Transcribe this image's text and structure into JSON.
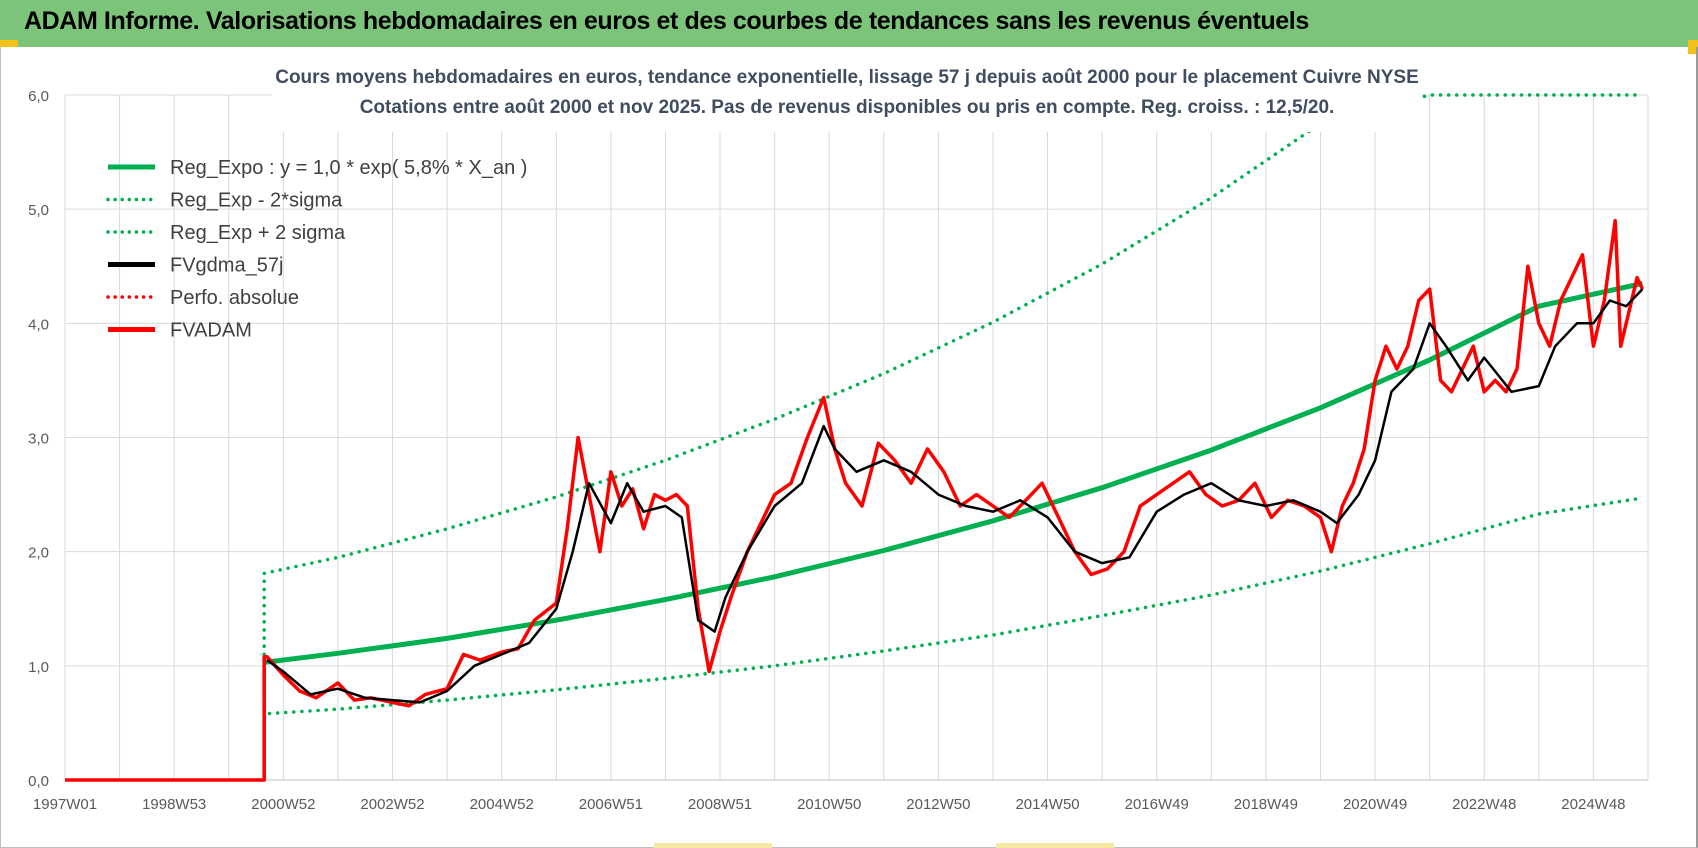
{
  "header": {
    "title": "ADAM Informe. Valorisations hebdomadaires en euros et des courbes de tendances sans les revenus éventuels"
  },
  "colors": {
    "header_bg": "#7cc47a",
    "reg_green": "#00b050",
    "fvgdma_black": "#000000",
    "fvadam_red": "#ff0000",
    "grid": "#d9d9d9"
  },
  "chart_data": {
    "type": "line",
    "title_line1": "Cours moyens hebdomadaires en euros, tendance exponentielle, lissage 57 j depuis août 2000 pour le placement Cuivre NYSE",
    "title_line2": "Cotations entre août 2000  et  nov 2025.  Pas de revenus disponibles ou pris en compte. Reg. croiss. : 12,5/20.",
    "xlabel": "",
    "ylabel": "",
    "ylim": [
      0,
      6
    ],
    "xlim": [
      1997.0,
      2026.0
    ],
    "yticks": [
      "0,0",
      "1,0",
      "2,0",
      "3,0",
      "4,0",
      "5,0",
      "6,0"
    ],
    "xticks": [
      {
        "label": "1997W01",
        "x": 1997.0
      },
      {
        "label": "1998W53",
        "x": 1999.0
      },
      {
        "label": "2000W52",
        "x": 2001.0
      },
      {
        "label": "2002W52",
        "x": 2003.0
      },
      {
        "label": "2004W52",
        "x": 2005.0
      },
      {
        "label": "2006W51",
        "x": 2007.0
      },
      {
        "label": "2008W51",
        "x": 2009.0
      },
      {
        "label": "2010W50",
        "x": 2011.0
      },
      {
        "label": "2012W50",
        "x": 2013.0
      },
      {
        "label": "2014W50",
        "x": 2015.0
      },
      {
        "label": "2016W49",
        "x": 2017.0
      },
      {
        "label": "2018W49",
        "x": 2019.0
      },
      {
        "label": "2020W49",
        "x": 2021.0
      },
      {
        "label": "2022W48",
        "x": 2023.0
      },
      {
        "label": "2024W48",
        "x": 2025.0
      }
    ],
    "grid": true,
    "legend_position": "top-left",
    "legend": [
      {
        "label": "Reg_Expo : y = 1,0 * exp( 5,8% *  X_an )",
        "color": "#00b050",
        "style": "solid",
        "width": 5
      },
      {
        "label": "Reg_Exp - 2*sigma",
        "color": "#00b050",
        "style": "dotted",
        "width": 3
      },
      {
        "label": "Reg_Exp + 2 sigma",
        "color": "#00b050",
        "style": "dotted",
        "width": 3
      },
      {
        "label": "FVgdma_57j",
        "color": "#000000",
        "style": "solid",
        "width": 4
      },
      {
        "label": "Perfo. absolue",
        "color": "#ff0000",
        "style": "dotted",
        "width": 3
      },
      {
        "label": "FVADAM",
        "color": "#ff0000",
        "style": "solid",
        "width": 5
      }
    ],
    "series": [
      {
        "name": "Reg_Expo : y = 1,0 * exp( 5,8% *  X_an )",
        "x": [
          2000.65,
          2002.0,
          2004.0,
          2006.0,
          2008.0,
          2010.0,
          2012.0,
          2014.0,
          2016.0,
          2018.0,
          2020.0,
          2022.0,
          2024.0,
          2025.9
        ],
        "values": [
          1.03,
          1.11,
          1.24,
          1.4,
          1.58,
          1.78,
          2.01,
          2.27,
          2.56,
          2.89,
          3.26,
          3.68,
          4.15,
          4.35
        ]
      },
      {
        "name": "Reg_Exp - 2*sigma",
        "x": [
          2000.65,
          2002.0,
          2004.0,
          2006.0,
          2008.0,
          2010.0,
          2012.0,
          2014.0,
          2016.0,
          2018.0,
          2020.0,
          2022.0,
          2024.0,
          2025.9
        ],
        "values": [
          0.58,
          0.62,
          0.7,
          0.79,
          0.89,
          1.0,
          1.13,
          1.27,
          1.44,
          1.62,
          1.83,
          2.07,
          2.33,
          2.47
        ]
      },
      {
        "name": "Reg_Exp + 2 sigma",
        "x": [
          2000.65,
          2002.0,
          2004.0,
          2006.0,
          2008.0,
          2010.0,
          2012.0,
          2014.0,
          2016.0,
          2018.0,
          2020.0,
          2022.0,
          2024.0,
          2025.9
        ],
        "values": [
          1.81,
          1.95,
          2.2,
          2.48,
          2.8,
          3.16,
          3.56,
          4.01,
          4.52,
          5.1,
          5.75,
          6.0,
          6.0,
          6.0
        ]
      },
      {
        "name": "FVgdma_57j",
        "x": [
          2000.7,
          2001.0,
          2001.5,
          2002.0,
          2002.5,
          2003.0,
          2003.5,
          2004.0,
          2004.5,
          2005.0,
          2005.5,
          2006.0,
          2006.3,
          2006.6,
          2007.0,
          2007.3,
          2007.6,
          2008.0,
          2008.3,
          2008.6,
          2008.9,
          2009.1,
          2009.5,
          2010.0,
          2010.5,
          2010.9,
          2011.1,
          2011.5,
          2012.0,
          2012.5,
          2013.0,
          2013.5,
          2014.0,
          2014.5,
          2015.0,
          2015.5,
          2016.0,
          2016.5,
          2017.0,
          2017.5,
          2018.0,
          2018.5,
          2019.0,
          2019.5,
          2020.0,
          2020.3,
          2020.7,
          2021.0,
          2021.3,
          2021.7,
          2022.0,
          2022.3,
          2022.7,
          2023.0,
          2023.5,
          2024.0,
          2024.3,
          2024.7,
          2025.0,
          2025.3,
          2025.6,
          2025.9
        ],
        "values": [
          1.05,
          0.95,
          0.75,
          0.8,
          0.72,
          0.7,
          0.68,
          0.78,
          1.0,
          1.1,
          1.2,
          1.5,
          2.0,
          2.6,
          2.25,
          2.6,
          2.35,
          2.4,
          2.3,
          1.4,
          1.3,
          1.6,
          2.0,
          2.4,
          2.6,
          3.1,
          2.9,
          2.7,
          2.8,
          2.7,
          2.5,
          2.4,
          2.35,
          2.45,
          2.3,
          2.0,
          1.9,
          1.95,
          2.35,
          2.5,
          2.6,
          2.45,
          2.4,
          2.45,
          2.35,
          2.25,
          2.5,
          2.8,
          3.4,
          3.6,
          4.0,
          3.8,
          3.5,
          3.7,
          3.4,
          3.45,
          3.8,
          4.0,
          4.0,
          4.2,
          4.15,
          4.3
        ]
      },
      {
        "name": "FVADAM",
        "x": [
          1997.0,
          2000.65,
          2000.7,
          2001.0,
          2001.3,
          2001.6,
          2002.0,
          2002.3,
          2002.6,
          2003.0,
          2003.3,
          2003.6,
          2004.0,
          2004.3,
          2004.6,
          2005.0,
          2005.3,
          2005.6,
          2006.0,
          2006.2,
          2006.4,
          2006.6,
          2006.8,
          2007.0,
          2007.2,
          2007.4,
          2007.6,
          2007.8,
          2008.0,
          2008.2,
          2008.4,
          2008.6,
          2008.8,
          2009.0,
          2009.2,
          2009.5,
          2009.8,
          2010.0,
          2010.3,
          2010.6,
          2010.9,
          2011.1,
          2011.3,
          2011.6,
          2011.9,
          2012.2,
          2012.5,
          2012.8,
          2013.1,
          2013.4,
          2013.7,
          2014.0,
          2014.3,
          2014.6,
          2014.9,
          2015.2,
          2015.5,
          2015.8,
          2016.1,
          2016.4,
          2016.7,
          2017.0,
          2017.3,
          2017.6,
          2017.9,
          2018.2,
          2018.5,
          2018.8,
          2019.1,
          2019.4,
          2019.7,
          2020.0,
          2020.2,
          2020.4,
          2020.6,
          2020.8,
          2021.0,
          2021.2,
          2021.4,
          2021.6,
          2021.8,
          2022.0,
          2022.2,
          2022.4,
          2022.6,
          2022.8,
          2023.0,
          2023.2,
          2023.4,
          2023.6,
          2023.8,
          2024.0,
          2024.2,
          2024.4,
          2024.6,
          2024.8,
          2025.0,
          2025.2,
          2025.4,
          2025.5,
          2025.6,
          2025.8,
          2025.9
        ],
        "values": [
          0.0,
          0.0,
          1.08,
          0.92,
          0.78,
          0.72,
          0.85,
          0.7,
          0.72,
          0.68,
          0.65,
          0.75,
          0.8,
          1.1,
          1.05,
          1.12,
          1.15,
          1.4,
          1.55,
          2.2,
          3.0,
          2.5,
          2.0,
          2.7,
          2.4,
          2.55,
          2.2,
          2.5,
          2.45,
          2.5,
          2.4,
          1.5,
          0.95,
          1.3,
          1.6,
          2.0,
          2.3,
          2.5,
          2.6,
          3.0,
          3.35,
          2.9,
          2.6,
          2.4,
          2.95,
          2.8,
          2.6,
          2.9,
          2.7,
          2.4,
          2.5,
          2.4,
          2.3,
          2.45,
          2.6,
          2.3,
          2.0,
          1.8,
          1.85,
          2.0,
          2.4,
          2.5,
          2.6,
          2.7,
          2.5,
          2.4,
          2.45,
          2.6,
          2.3,
          2.45,
          2.4,
          2.3,
          2.0,
          2.4,
          2.6,
          2.9,
          3.5,
          3.8,
          3.6,
          3.8,
          4.2,
          4.3,
          3.5,
          3.4,
          3.6,
          3.8,
          3.4,
          3.5,
          3.4,
          3.6,
          4.5,
          4.0,
          3.8,
          4.2,
          4.4,
          4.6,
          3.8,
          4.2,
          4.9,
          3.8,
          4.0,
          4.4,
          4.3
        ]
      }
    ]
  }
}
